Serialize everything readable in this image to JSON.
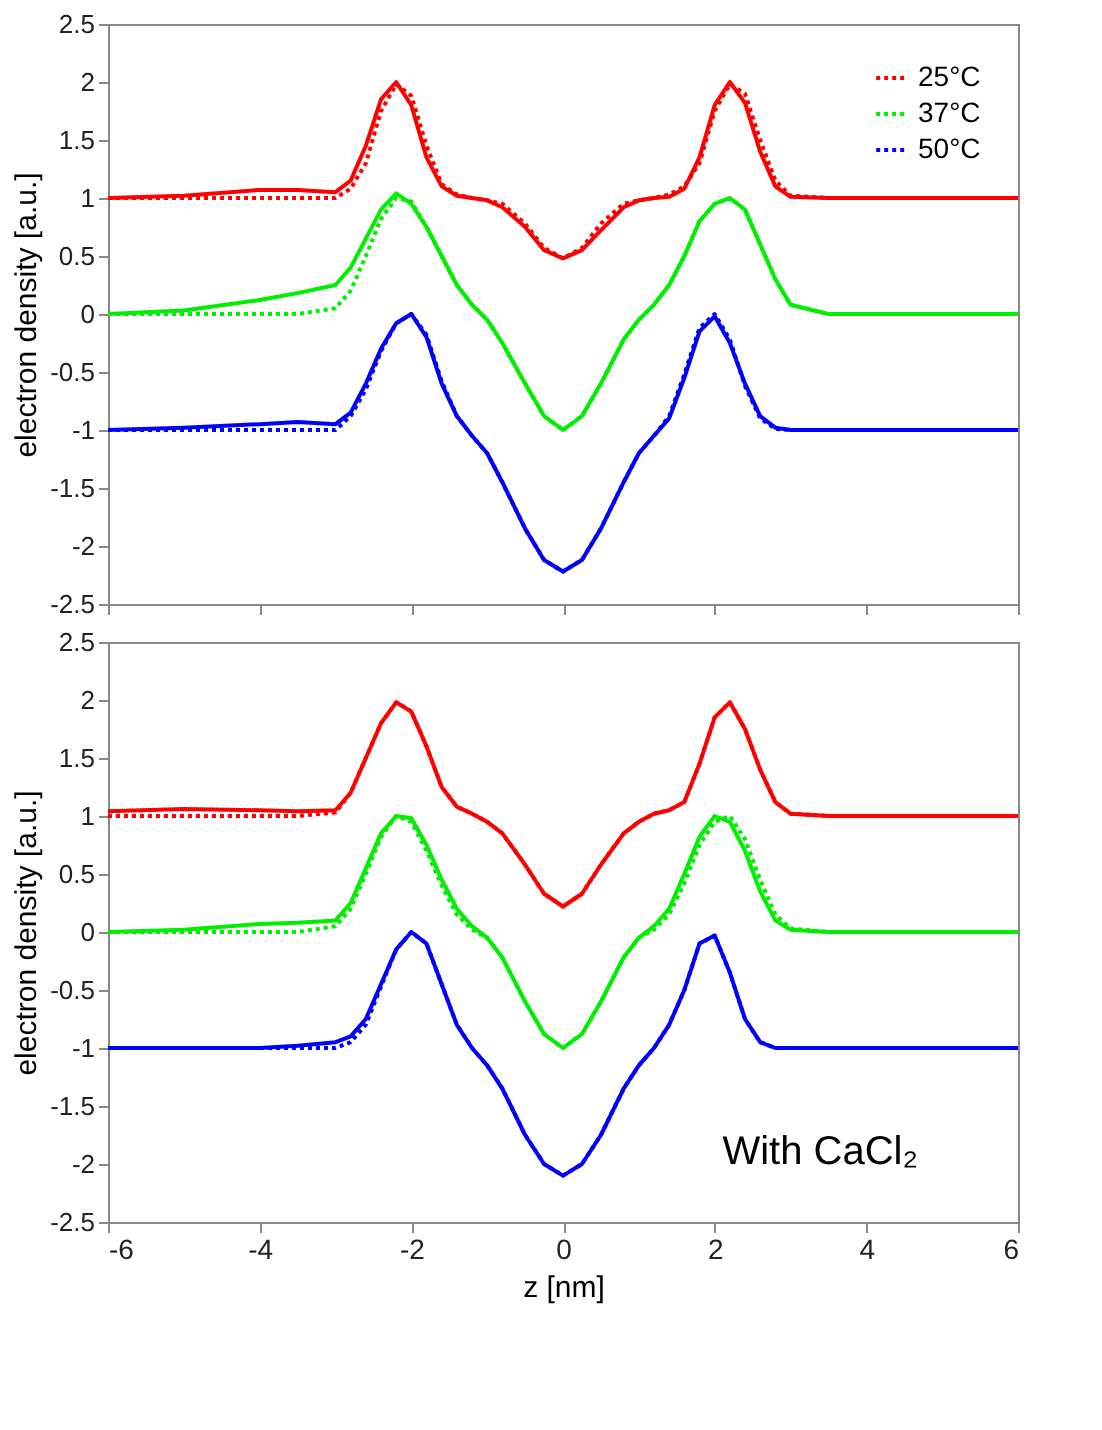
{
  "chart_data": [
    {
      "type": "line",
      "ylabel": "electron density [a.u.]",
      "xlim": [
        -6,
        6
      ],
      "xticks": [
        -6,
        -4,
        -2,
        0,
        2,
        4,
        6
      ],
      "ylim": [
        -2.5,
        2.5
      ],
      "yticks": [
        -2.5,
        -2,
        -1.5,
        -1,
        -0.5,
        0,
        0.5,
        1,
        1.5,
        2,
        2.5
      ],
      "tick_labels": "y",
      "legend": "top right",
      "grid": false,
      "x": [
        -6,
        -5,
        -4,
        -3.5,
        -3,
        -2.8,
        -2.6,
        -2.4,
        -2.2,
        -2.0,
        -1.8,
        -1.6,
        -1.4,
        -1.2,
        -1.0,
        -0.8,
        -0.5,
        -0.25,
        0,
        0.25,
        0.5,
        0.8,
        1.0,
        1.2,
        1.4,
        1.6,
        1.8,
        2.0,
        2.2,
        2.4,
        2.6,
        2.8,
        3.0,
        3.5,
        4,
        5,
        6
      ],
      "series": [
        {
          "color": "#ff0000",
          "line_style": "solid",
          "values": [
            1,
            1.02,
            1.07,
            1.07,
            1.05,
            1.15,
            1.45,
            1.85,
            2.0,
            1.8,
            1.35,
            1.1,
            1.02,
            1.0,
            0.98,
            0.92,
            0.75,
            0.55,
            0.48,
            0.55,
            0.72,
            0.92,
            0.98,
            1.0,
            1.01,
            1.08,
            1.35,
            1.8,
            2.0,
            1.82,
            1.4,
            1.1,
            1.01,
            1,
            1,
            1,
            1
          ]
        },
        {
          "color": "#00ee00",
          "line_style": "solid",
          "values": [
            0,
            0.03,
            0.12,
            0.18,
            0.25,
            0.4,
            0.65,
            0.9,
            1.04,
            0.95,
            0.75,
            0.5,
            0.25,
            0.08,
            -0.05,
            -0.25,
            -0.6,
            -0.88,
            -1.0,
            -0.88,
            -0.6,
            -0.22,
            -0.05,
            0.08,
            0.25,
            0.5,
            0.8,
            0.95,
            1.0,
            0.9,
            0.6,
            0.3,
            0.08,
            0,
            0,
            0,
            0
          ]
        },
        {
          "color": "#0000ff",
          "line_style": "solid",
          "values": [
            -1,
            -0.98,
            -0.95,
            -0.93,
            -0.95,
            -0.85,
            -0.6,
            -0.3,
            -0.08,
            0.0,
            -0.2,
            -0.6,
            -0.88,
            -1.05,
            -1.2,
            -1.45,
            -1.85,
            -2.12,
            -2.22,
            -2.12,
            -1.85,
            -1.45,
            -1.2,
            -1.05,
            -0.9,
            -0.55,
            -0.15,
            -0.02,
            -0.25,
            -0.6,
            -0.88,
            -0.98,
            -1.0,
            -1,
            -1,
            -1,
            -1
          ]
        },
        {
          "name": "25°C",
          "color": "#ff0000",
          "line_style": "dotted",
          "values": [
            1,
            1,
            1,
            1,
            1,
            1.08,
            1.3,
            1.75,
            1.98,
            1.88,
            1.45,
            1.12,
            1.03,
            1.0,
            0.98,
            0.95,
            0.78,
            0.57,
            0.48,
            0.57,
            0.78,
            0.95,
            0.98,
            1.0,
            1.03,
            1.1,
            1.3,
            1.75,
            1.98,
            1.9,
            1.5,
            1.15,
            1.02,
            1,
            1,
            1,
            1
          ]
        },
        {
          "name": "37°C",
          "color": "#00ee00",
          "line_style": "dotted",
          "values": [
            0,
            0,
            0,
            0,
            0.05,
            0.2,
            0.5,
            0.82,
            1.0,
            0.97,
            0.75,
            0.5,
            0.25,
            0.08,
            -0.05,
            -0.25,
            -0.6,
            -0.88,
            -1.0,
            -0.88,
            -0.6,
            -0.22,
            -0.05,
            0.08,
            0.25,
            0.5,
            0.8,
            0.95,
            1.0,
            0.9,
            0.6,
            0.3,
            0.08,
            0,
            0,
            0,
            0
          ]
        },
        {
          "name": "50°C",
          "color": "#0000ff",
          "line_style": "dotted",
          "values": [
            -1,
            -1,
            -1,
            -1,
            -1,
            -0.88,
            -0.65,
            -0.32,
            -0.08,
            0.0,
            -0.18,
            -0.58,
            -0.88,
            -1.05,
            -1.2,
            -1.45,
            -1.85,
            -2.12,
            -2.22,
            -2.12,
            -1.85,
            -1.45,
            -1.2,
            -1.05,
            -0.88,
            -0.52,
            -0.12,
            0.0,
            -0.22,
            -0.62,
            -0.9,
            -0.99,
            -1.0,
            -1,
            -1,
            -1,
            -1
          ]
        }
      ]
    },
    {
      "type": "line",
      "xlabel": "z [nm]",
      "ylabel": "electron density [a.u.]",
      "xlim": [
        -6,
        6
      ],
      "xticks": [
        -6,
        -4,
        -2,
        0,
        2,
        4,
        6
      ],
      "ylim": [
        -2.5,
        2.5
      ],
      "yticks": [
        -2.5,
        -2,
        -1.5,
        -1,
        -0.5,
        0,
        0.5,
        1,
        1.5,
        2,
        2.5
      ],
      "legend": "top right",
      "grid": false,
      "annotations": [
        "With CaCl₂"
      ],
      "x": [
        -6,
        -5,
        -4,
        -3.5,
        -3,
        -2.8,
        -2.6,
        -2.4,
        -2.2,
        -2.0,
        -1.8,
        -1.6,
        -1.4,
        -1.2,
        -1.0,
        -0.8,
        -0.5,
        -0.25,
        0,
        0.25,
        0.5,
        0.8,
        1.0,
        1.2,
        1.4,
        1.6,
        1.8,
        2.0,
        2.2,
        2.4,
        2.6,
        2.8,
        3.0,
        3.5,
        4,
        5,
        6
      ],
      "series": [
        {
          "color": "#ff0000",
          "line_style": "solid",
          "values": [
            1.04,
            1.06,
            1.05,
            1.04,
            1.05,
            1.2,
            1.5,
            1.8,
            1.98,
            1.9,
            1.6,
            1.25,
            1.08,
            1.02,
            0.95,
            0.85,
            0.58,
            0.33,
            0.22,
            0.33,
            0.58,
            0.85,
            0.95,
            1.02,
            1.05,
            1.12,
            1.45,
            1.85,
            1.98,
            1.75,
            1.4,
            1.12,
            1.02,
            1.0,
            1,
            1,
            1
          ]
        },
        {
          "color": "#00ee00",
          "line_style": "solid",
          "values": [
            0,
            0.02,
            0.07,
            0.08,
            0.1,
            0.25,
            0.55,
            0.85,
            1.0,
            0.98,
            0.75,
            0.45,
            0.2,
            0.05,
            -0.05,
            -0.22,
            -0.6,
            -0.88,
            -1.0,
            -0.88,
            -0.6,
            -0.22,
            -0.05,
            0.05,
            0.2,
            0.5,
            0.82,
            1.0,
            0.95,
            0.7,
            0.35,
            0.1,
            0.02,
            0,
            0,
            0,
            0
          ]
        },
        {
          "color": "#0000ff",
          "line_style": "solid",
          "values": [
            -1,
            -1,
            -1,
            -0.98,
            -0.95,
            -0.9,
            -0.75,
            -0.45,
            -0.15,
            0.0,
            -0.1,
            -0.45,
            -0.8,
            -1.0,
            -1.15,
            -1.35,
            -1.75,
            -2.0,
            -2.1,
            -2.0,
            -1.75,
            -1.35,
            -1.15,
            -1.0,
            -0.8,
            -0.5,
            -0.1,
            -0.03,
            -0.35,
            -0.75,
            -0.95,
            -1.0,
            -1.0,
            -1,
            -1,
            -1,
            -1
          ]
        },
        {
          "name": "25°C",
          "color": "#ff0000",
          "line_style": "dotted",
          "values": [
            1,
            1,
            1,
            1,
            1.03,
            1.2,
            1.5,
            1.8,
            1.98,
            1.9,
            1.6,
            1.25,
            1.08,
            1.02,
            0.95,
            0.85,
            0.58,
            0.33,
            0.22,
            0.33,
            0.58,
            0.85,
            0.95,
            1.02,
            1.05,
            1.12,
            1.45,
            1.85,
            1.98,
            1.75,
            1.4,
            1.12,
            1.02,
            1.0,
            1,
            1,
            1
          ]
        },
        {
          "name": "37°C",
          "color": "#00ee00",
          "line_style": "dotted",
          "values": [
            0,
            0,
            0,
            0,
            0.05,
            0.2,
            0.5,
            0.82,
            1.0,
            0.95,
            0.7,
            0.4,
            0.15,
            0.02,
            -0.05,
            -0.22,
            -0.6,
            -0.88,
            -1.0,
            -0.88,
            -0.6,
            -0.22,
            -0.05,
            0.02,
            0.15,
            0.42,
            0.75,
            0.95,
            1.0,
            0.8,
            0.45,
            0.15,
            0.03,
            0,
            0,
            0,
            0
          ]
        },
        {
          "name": "50°C",
          "color": "#0000ff",
          "line_style": "dotted",
          "values": [
            -1,
            -1,
            -1,
            -1,
            -1,
            -0.95,
            -0.8,
            -0.47,
            -0.15,
            0.0,
            -0.1,
            -0.45,
            -0.8,
            -1.0,
            -1.15,
            -1.35,
            -1.75,
            -2.0,
            -2.1,
            -2.0,
            -1.75,
            -1.35,
            -1.15,
            -1.0,
            -0.8,
            -0.5,
            -0.1,
            -0.03,
            -0.35,
            -0.75,
            -0.95,
            -1.0,
            -1.0,
            -1,
            -1,
            -1,
            -1
          ]
        }
      ]
    }
  ]
}
